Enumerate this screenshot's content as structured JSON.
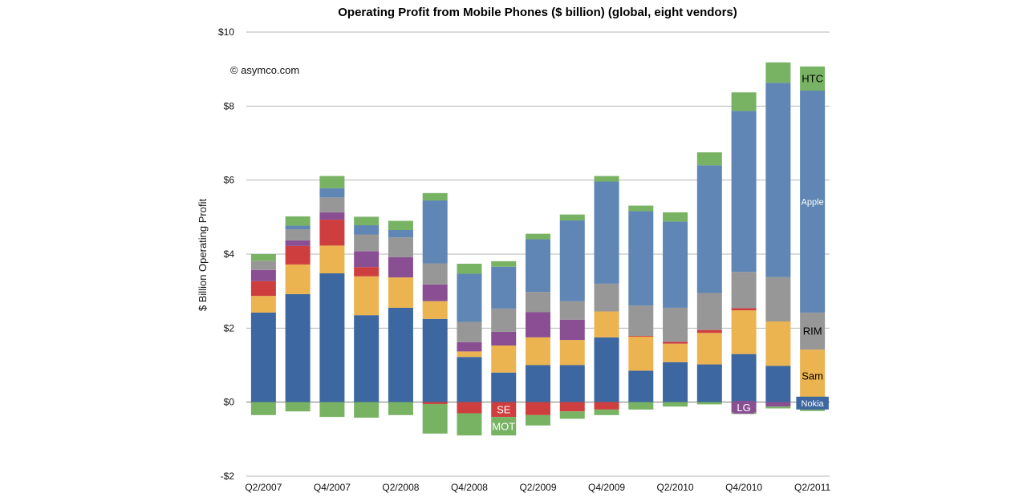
{
  "chart_data": {
    "type": "bar",
    "stacked": true,
    "title": "Operating Profit from Mobile Phones ($ billion) (global, eight vendors)",
    "ylabel": "$ Billion Operating Profit",
    "xlabel": "",
    "credit": "© asymco.com",
    "ylim": [
      -2,
      10
    ],
    "yticks": [
      -2,
      0,
      2,
      4,
      6,
      8,
      10
    ],
    "ytick_labels": [
      "-$2",
      "$0",
      "$2",
      "$4",
      "$6",
      "$8",
      "$10"
    ],
    "grid": true,
    "categories": [
      "Q2/2007",
      "Q3/2007",
      "Q4/2007",
      "Q1/2008",
      "Q2/2008",
      "Q3/2008",
      "Q4/2008",
      "Q1/2009",
      "Q2/2009",
      "Q3/2009",
      "Q4/2009",
      "Q1/2010",
      "Q2/2010",
      "Q3/2010",
      "Q4/2010",
      "Q1/2011",
      "Q2/2011"
    ],
    "xtick_labels": [
      "Q2/2007",
      "",
      "Q4/2007",
      "",
      "Q2/2008",
      "",
      "Q4/2008",
      "",
      "Q2/2009",
      "",
      "Q4/2009",
      "",
      "Q2/2010",
      "",
      "Q4/2010",
      "",
      "Q2/2011"
    ],
    "series": [
      {
        "name": "Nokia",
        "color": "#3c67a0",
        "values": [
          2.42,
          2.92,
          3.48,
          2.35,
          2.55,
          2.25,
          1.22,
          0.8,
          1.0,
          1.0,
          1.75,
          0.85,
          1.08,
          1.02,
          1.3,
          0.98,
          -0.05
        ]
      },
      {
        "name": "Sam",
        "color": "#ebb451",
        "values": [
          0.45,
          0.8,
          0.75,
          1.05,
          0.82,
          0.48,
          0.15,
          0.73,
          0.75,
          0.68,
          0.7,
          0.92,
          0.5,
          0.85,
          1.18,
          1.2,
          1.42
        ]
      },
      {
        "name": "SE",
        "color": "#cf3e3e",
        "values": [
          0.4,
          0.5,
          0.7,
          0.25,
          0.0,
          -0.05,
          -0.3,
          -0.4,
          -0.35,
          -0.25,
          -0.2,
          0.02,
          0.05,
          0.08,
          0.06,
          0.0,
          -0.07
        ]
      },
      {
        "name": "LG",
        "color": "#8a4f93",
        "values": [
          0.3,
          0.15,
          0.2,
          0.43,
          0.55,
          0.45,
          0.25,
          0.37,
          0.68,
          0.55,
          0.0,
          0.0,
          0.0,
          0.0,
          -0.28,
          -0.12,
          -0.08
        ]
      },
      {
        "name": "RIM",
        "color": "#979797",
        "values": [
          0.25,
          0.3,
          0.4,
          0.45,
          0.53,
          0.57,
          0.55,
          0.63,
          0.55,
          0.5,
          0.75,
          0.82,
          0.92,
          1.0,
          0.98,
          1.2,
          1.0
        ]
      },
      {
        "name": "Apple",
        "color": "#5f86b4",
        "values": [
          0.0,
          0.1,
          0.25,
          0.25,
          0.2,
          1.7,
          1.3,
          1.13,
          1.42,
          2.18,
          2.76,
          2.55,
          2.33,
          3.45,
          4.35,
          5.25,
          6.0
        ]
      },
      {
        "name": "HTC",
        "color": "#78b364",
        "values": [
          0.18,
          0.25,
          0.33,
          0.23,
          0.25,
          0.2,
          0.27,
          0.15,
          0.15,
          0.16,
          0.15,
          0.15,
          0.25,
          0.35,
          0.5,
          0.55,
          0.65
        ]
      },
      {
        "name": "MOT",
        "color": "#78b364",
        "values": [
          -0.35,
          -0.25,
          -0.4,
          -0.42,
          -0.35,
          -0.8,
          -0.6,
          -0.5,
          -0.28,
          -0.2,
          -0.15,
          -0.2,
          -0.12,
          -0.06,
          -0.04,
          -0.05,
          -0.04
        ]
      }
    ],
    "inline_labels": [
      {
        "text": "HTC",
        "series": "HTC",
        "category": "Q2/2011",
        "fg": "#000000",
        "bg": ""
      },
      {
        "text": "Apple",
        "series": "Apple",
        "category": "Q2/2011",
        "fg": "#ffffff",
        "bg": ""
      },
      {
        "text": "RIM",
        "series": "RIM",
        "category": "Q2/2011",
        "fg": "#000000",
        "bg": ""
      },
      {
        "text": "Sam",
        "series": "Sam",
        "category": "Q2/2011",
        "fg": "#000000",
        "bg": ""
      },
      {
        "text": "Nokia",
        "series": "Nokia",
        "category": "Q2/2011",
        "fg": "#ffffff",
        "bg": "#3c67a0"
      },
      {
        "text": "MOT",
        "series": "MOT",
        "category": "Q1/2009",
        "fg": "#ffffff",
        "bg": ""
      },
      {
        "text": "SE",
        "series": "SE",
        "category": "Q1/2009",
        "fg": "#ffffff",
        "bg": "#cf3e3e"
      },
      {
        "text": "LG",
        "series": "LG",
        "category": "Q4/2010",
        "fg": "#ffffff",
        "bg": "#8a4f93"
      }
    ]
  }
}
